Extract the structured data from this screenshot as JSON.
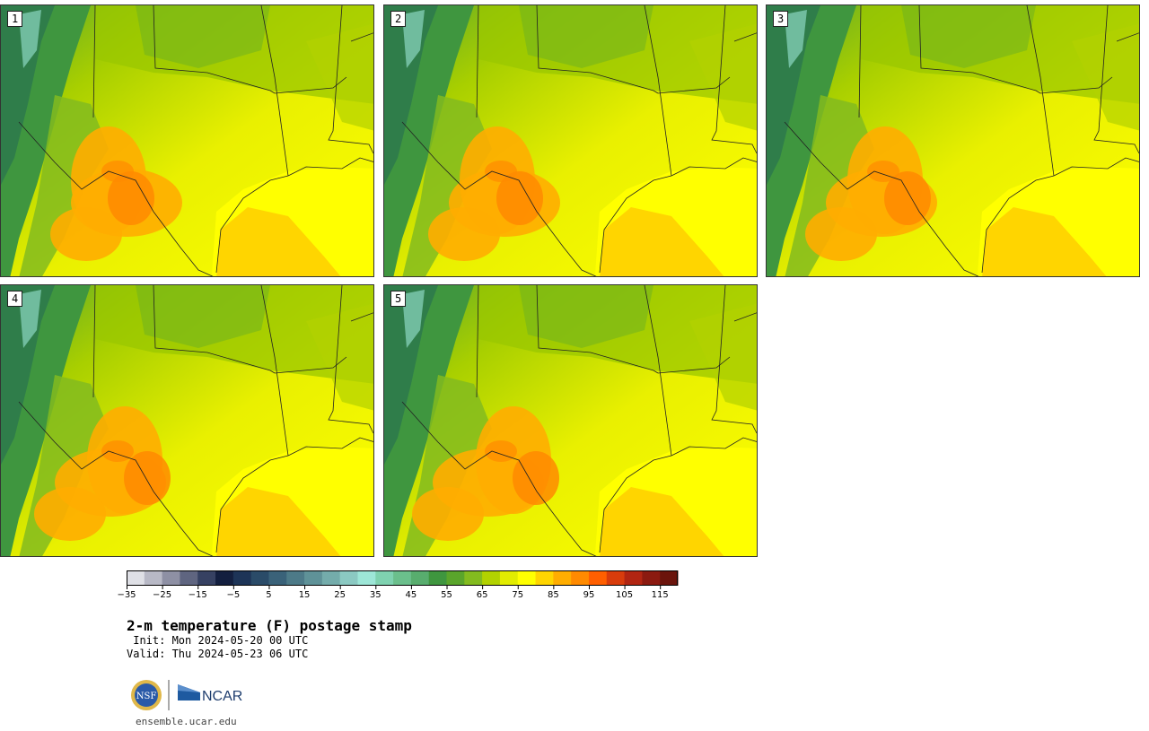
{
  "panels": [
    {
      "id": "panel-1",
      "label": "1"
    },
    {
      "id": "panel-2",
      "label": "2"
    },
    {
      "id": "panel-3",
      "label": "3"
    },
    {
      "id": "panel-4",
      "label": "4"
    },
    {
      "id": "panel-5",
      "label": "5"
    }
  ],
  "colorbar": {
    "colors": [
      "#dfe0e6",
      "#b8b9c6",
      "#8e90a4",
      "#5f6580",
      "#364162",
      "#131f3f",
      "#1d3457",
      "#2a4b68",
      "#3a6279",
      "#4d7a88",
      "#5f9298",
      "#74acab",
      "#8bc9c2",
      "#9de6d7",
      "#7fd2b0",
      "#6bbf8c",
      "#58ad6e",
      "#3f963f",
      "#5aa52b",
      "#83bb1f",
      "#b2d200",
      "#e2ec00",
      "#ffff00",
      "#ffd500",
      "#ffad00",
      "#ff8a00",
      "#ff5f00",
      "#d83c0c",
      "#b12512",
      "#8b1a10",
      "#6b140c"
    ],
    "tick_labels": [
      "−35",
      "−25",
      "−15",
      "−5",
      "5",
      "15",
      "25",
      "35",
      "45",
      "55",
      "65",
      "75",
      "85",
      "95",
      "105",
      "115"
    ]
  },
  "title": "2-m temperature (F) postage stamp",
  "init": " Init: Mon 2024-05-20 00 UTC",
  "valid": "Valid: Thu 2024-05-23 06 UTC",
  "logos": {
    "nsf": "NSF",
    "ncar": "NCAR"
  },
  "site": "ensemble.ucar.edu"
}
